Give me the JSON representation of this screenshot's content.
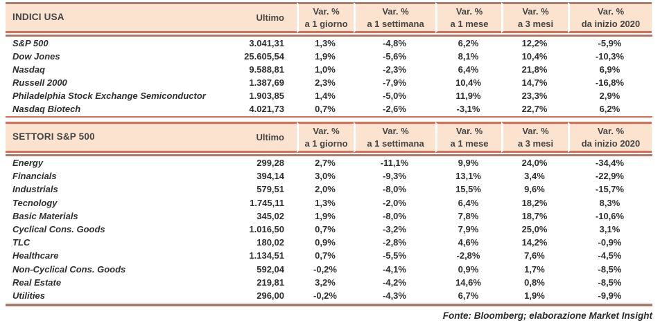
{
  "columns": {
    "ultimo": "Ultimo",
    "var": [
      {
        "l1": "Var. %",
        "l2": "a 1 giorno"
      },
      {
        "l1": "Var. %",
        "l2": "a 1 settimana"
      },
      {
        "l1": "Var. %",
        "l2": "a 1 mese"
      },
      {
        "l1": "Var. %",
        "l2": "a 3 mesi"
      },
      {
        "l1": "Var. %",
        "l2": "da inizio 2020"
      }
    ]
  },
  "chart_data": [
    {
      "type": "table",
      "title": "INDICI USA",
      "columns": [
        "Ultimo",
        "Var. % a 1 giorno",
        "Var. % a 1 settimana",
        "Var. % a 1 mese",
        "Var. % a 3 mesi",
        "Var. % da inizio 2020"
      ],
      "rows": [
        {
          "name": "S&P 500",
          "values": [
            "3.041,31",
            "1,3%",
            "-4,8%",
            "6,2%",
            "12,2%",
            "-5,9%"
          ]
        },
        {
          "name": "Dow Jones",
          "values": [
            "25.605,54",
            "1,9%",
            "-5,6%",
            "8,1%",
            "10,4%",
            "-10,3%"
          ]
        },
        {
          "name": "Nasdaq",
          "values": [
            "9.588,81",
            "1,0%",
            "-2,3%",
            "6,4%",
            "21,8%",
            "6,9%"
          ]
        },
        {
          "name": "Russell 2000",
          "values": [
            "1.387,69",
            "2,3%",
            "-7,9%",
            "10,4%",
            "14,7%",
            "-16,8%"
          ]
        },
        {
          "name": "Philadelphia Stock Exchange Semiconductor",
          "values": [
            "1.903,85",
            "1,4%",
            "-5,0%",
            "11,9%",
            "23,3%",
            "2,9%"
          ]
        },
        {
          "name": "Nasdaq Biotech",
          "values": [
            "4.021,73",
            "0,7%",
            "-2,6%",
            "-3,1%",
            "22,7%",
            "6,2%"
          ]
        }
      ]
    },
    {
      "type": "table",
      "title": "SETTORI S&P 500",
      "columns": [
        "Ultimo",
        "Var. % a 1 giorno",
        "Var. % a 1 settimana",
        "Var. % a 1 mese",
        "Var. % a 3 mesi",
        "Var. % da inizio 2020"
      ],
      "rows": [
        {
          "name": "Energy",
          "values": [
            "299,28",
            "2,7%",
            "-11,1%",
            "9,9%",
            "24,0%",
            "-34,4%"
          ]
        },
        {
          "name": "Financials",
          "values": [
            "394,14",
            "3,0%",
            "-9,3%",
            "13,1%",
            "3,4%",
            "-22,9%"
          ]
        },
        {
          "name": "Industrials",
          "values": [
            "579,51",
            "2,0%",
            "-8,0%",
            "15,5%",
            "9,6%",
            "-15,7%"
          ]
        },
        {
          "name": "Tecnology",
          "values": [
            "1.745,11",
            "1,3%",
            "-2,0%",
            "6,4%",
            "18,2%",
            "8,3%"
          ]
        },
        {
          "name": "Basic Materials",
          "values": [
            "345,02",
            "1,9%",
            "-8,0%",
            "7,8%",
            "18,7%",
            "-10,6%"
          ]
        },
        {
          "name": "Cyclical Cons. Goods",
          "values": [
            "1.016,50",
            "0,7%",
            "-3,2%",
            "7,9%",
            "25,0%",
            "3,1%"
          ]
        },
        {
          "name": "TLC",
          "values": [
            "180,02",
            "0,9%",
            "-2,8%",
            "4,6%",
            "14,2%",
            "-0,9%"
          ]
        },
        {
          "name": "Healthcare",
          "values": [
            "1.134,51",
            "0,7%",
            "-5,5%",
            "-2,8%",
            "7,6%",
            "-4,5%"
          ]
        },
        {
          "name": "Non-Cyclical Cons. Goods",
          "values": [
            "592,04",
            "-0,2%",
            "-4,1%",
            "0,9%",
            "1,7%",
            "-8,5%"
          ]
        },
        {
          "name": "Real Estate",
          "values": [
            "219,81",
            "3,2%",
            "-4,2%",
            "14,6%",
            "0,8%",
            "-8,5%"
          ]
        },
        {
          "name": "Utilities",
          "values": [
            "296,00",
            "-0,2%",
            "-4,3%",
            "6,7%",
            "1,9%",
            "-9,9%"
          ]
        }
      ]
    }
  ],
  "footer": "Fonte: Bloomberg; elaborazione Market Insight",
  "colors": {
    "header_bg": "#fbe3cf",
    "rule_salmon": "#d96d58",
    "rule_brown": "#ad7a6c",
    "text": "#2f2f2f"
  }
}
